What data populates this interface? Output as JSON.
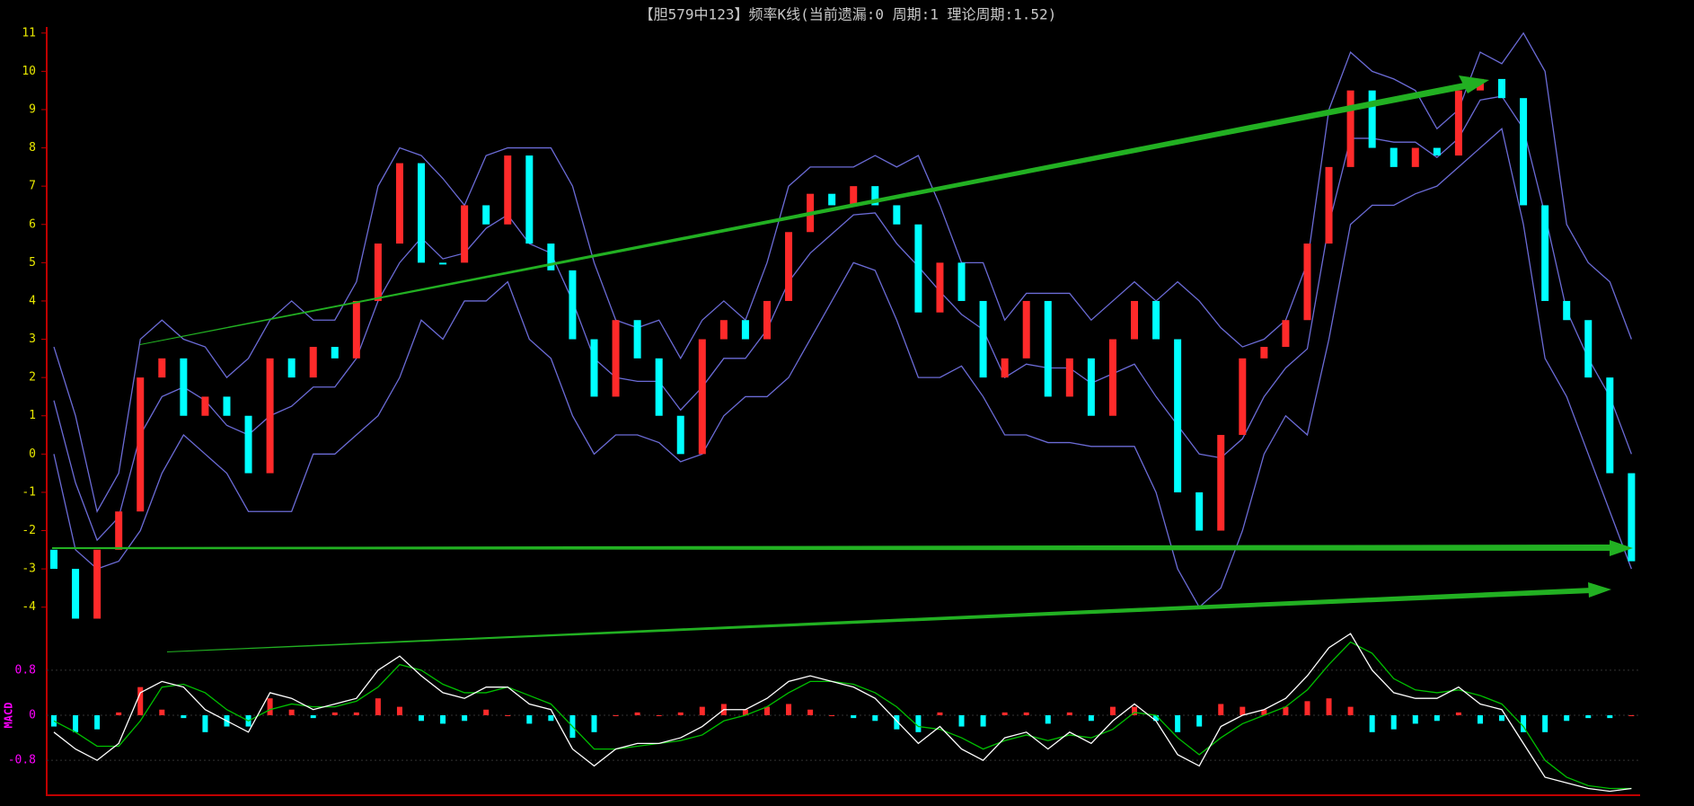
{
  "chart_data": {
    "type": "candlestick",
    "title": "【胆579中123】频率K线(当前遗漏:0 周期:1 理论周期:1.52)",
    "open": [
      -2.5,
      -3,
      -4.3,
      -2.5,
      -1.5,
      2,
      2.5,
      1,
      1.5,
      1,
      -0.5,
      2.5,
      2,
      2.8,
      2.5,
      4,
      5.5,
      7.6,
      5,
      5,
      6.5,
      6,
      7.8,
      5.5,
      4.8,
      3,
      1.5,
      3.5,
      2.5,
      1,
      0,
      3,
      3.5,
      3,
      4,
      5.8,
      6.8,
      6.5,
      7,
      6.5,
      6,
      3.7,
      5,
      4,
      2,
      2.5,
      4,
      1.5,
      2.5,
      1,
      3,
      4,
      3,
      -1,
      -2,
      0.5,
      2.5,
      2.8,
      3.5,
      5.5,
      7.5,
      9.5,
      8,
      7.5,
      8,
      7.8,
      9.5,
      9.8,
      9.3,
      6.5,
      4,
      3.5,
      2,
      -0.5
    ],
    "close": [
      -3,
      -4.3,
      -2.5,
      -1.5,
      2,
      2.5,
      1,
      1.5,
      1,
      -0.5,
      2.5,
      2,
      2.8,
      2.5,
      4,
      5.5,
      7.6,
      5,
      5,
      6.5,
      6,
      7.8,
      5.5,
      4.8,
      3,
      1.5,
      3.5,
      2.5,
      1,
      0,
      3,
      3.5,
      3,
      4,
      5.8,
      6.8,
      6.5,
      7,
      6.5,
      6,
      3.7,
      5,
      4,
      2,
      2.5,
      4,
      1.5,
      2.5,
      1,
      3,
      4,
      3,
      -1,
      -2,
      0.5,
      2.5,
      2.8,
      3.5,
      5.5,
      7.5,
      9.5,
      8,
      7.5,
      8,
      7.8,
      9.5,
      9.8,
      9.3,
      6.5,
      4,
      3.5,
      2,
      -0.5,
      -2.8
    ],
    "upper": [
      2.8,
      1,
      -1.5,
      -0.5,
      3,
      3.5,
      3,
      2.8,
      2,
      2.5,
      3.5,
      4,
      3.5,
      3.5,
      4.5,
      7,
      8,
      7.8,
      7.2,
      6.5,
      7.8,
      8,
      8,
      8,
      7,
      5,
      3.5,
      3.3,
      3.5,
      2.5,
      3.5,
      4,
      3.5,
      5,
      7,
      7.5,
      7.5,
      7.5,
      7.8,
      7.5,
      7.8,
      6.5,
      5,
      5,
      3.5,
      4.2,
      4.2,
      4.2,
      3.5,
      4,
      4.5,
      4,
      4.5,
      4,
      3.3,
      2.8,
      3,
      3.5,
      5,
      9,
      10.5,
      10,
      9.8,
      9.5,
      8.5,
      9,
      10.5,
      10.2,
      11,
      10,
      6,
      5,
      4.5,
      3
    ],
    "middle": [
      1.4,
      -0.75,
      -2.25,
      -1.65,
      0.5,
      1.5,
      1.75,
      1.4,
      0.75,
      0.5,
      1,
      1.25,
      1.75,
      1.75,
      2.5,
      4,
      5,
      5.65,
      5.1,
      5.25,
      5.9,
      6.25,
      5.5,
      5.25,
      4,
      2.5,
      2,
      1.9,
      1.9,
      1.15,
      1.75,
      2.5,
      2.5,
      3.25,
      4.5,
      5.25,
      5.75,
      6.25,
      6.3,
      5.5,
      4.9,
      4.25,
      3.65,
      3.25,
      2,
      2.35,
      2.25,
      2.25,
      1.85,
      2.1,
      2.35,
      1.5,
      0.75,
      0,
      -0.1,
      0.4,
      1.5,
      2.25,
      2.75,
      6,
      8.25,
      8.25,
      8.15,
      8.15,
      7.75,
      8.25,
      9.25,
      9.35,
      8.5,
      6.25,
      3.75,
      2.5,
      1.5,
      0
    ],
    "lower": [
      0,
      -2.5,
      -3,
      -2.8,
      -2,
      -0.5,
      0.5,
      0,
      -0.5,
      -1.5,
      -1.5,
      -1.5,
      0,
      0,
      0.5,
      1,
      2,
      3.5,
      3,
      4,
      4,
      4.5,
      3,
      2.5,
      1,
      0,
      0.5,
      0.5,
      0.3,
      -0.2,
      0,
      1,
      1.5,
      1.5,
      2,
      3,
      4,
      5,
      4.8,
      3.5,
      2,
      2,
      2.3,
      1.5,
      0.5,
      0.5,
      0.3,
      0.3,
      0.2,
      0.2,
      0.2,
      -1,
      -3,
      -4,
      -3.5,
      -2,
      0,
      1,
      0.5,
      3,
      6,
      6.5,
      6.5,
      6.8,
      7,
      7.5,
      8,
      8.5,
      6,
      2.5,
      1.5,
      0,
      -1.5,
      -3
    ],
    "up_color": "#ff2a2a",
    "down_color": "#00ffff",
    "band_color": "#6b6bd6",
    "ylim": [
      -4.5,
      11.3
    ],
    "yticks": [
      11,
      10,
      9,
      8,
      7,
      6,
      5,
      4,
      3,
      2,
      1,
      0,
      -1,
      -2,
      -3,
      -4
    ],
    "macd": {
      "label": "MACD",
      "dif": [
        -0.3,
        -0.6,
        -0.8,
        -0.5,
        0.4,
        0.6,
        0.5,
        0.1,
        -0.1,
        -0.3,
        0.4,
        0.3,
        0.1,
        0.2,
        0.3,
        0.8,
        1.05,
        0.7,
        0.4,
        0.3,
        0.5,
        0.5,
        0.2,
        0.1,
        -0.6,
        -0.9,
        -0.6,
        -0.5,
        -0.5,
        -0.4,
        -0.2,
        0.1,
        0.1,
        0.3,
        0.6,
        0.7,
        0.6,
        0.5,
        0.3,
        -0.1,
        -0.5,
        -0.2,
        -0.6,
        -0.8,
        -0.4,
        -0.3,
        -0.6,
        -0.3,
        -0.5,
        -0.1,
        0.2,
        -0.1,
        -0.7,
        -0.9,
        -0.2,
        0,
        0.1,
        0.3,
        0.7,
        1.2,
        1.45,
        0.8,
        0.4,
        0.3,
        0.3,
        0.5,
        0.2,
        0.1,
        -0.5,
        -1.1,
        -1.2,
        -1.3,
        -1.35,
        -1.3
      ],
      "dea": [
        -0.1,
        -0.3,
        -0.55,
        -0.55,
        -0.1,
        0.5,
        0.55,
        0.4,
        0.1,
        -0.1,
        0.1,
        0.2,
        0.15,
        0.15,
        0.25,
        0.5,
        0.9,
        0.8,
        0.55,
        0.4,
        0.4,
        0.5,
        0.35,
        0.2,
        -0.2,
        -0.6,
        -0.6,
        -0.55,
        -0.5,
        -0.45,
        -0.35,
        -0.1,
        0,
        0.15,
        0.4,
        0.6,
        0.6,
        0.55,
        0.4,
        0.15,
        -0.2,
        -0.25,
        -0.4,
        -0.6,
        -0.45,
        -0.35,
        -0.45,
        -0.35,
        -0.4,
        -0.25,
        0.05,
        0,
        -0.4,
        -0.7,
        -0.4,
        -0.15,
        0,
        0.15,
        0.45,
        0.9,
        1.3,
        1.1,
        0.65,
        0.45,
        0.4,
        0.45,
        0.35,
        0.2,
        -0.2,
        -0.8,
        -1.1,
        -1.25,
        -1.3,
        -1.3
      ],
      "hist": [
        -0.2,
        -0.3,
        -0.25,
        0.05,
        0.5,
        0.1,
        -0.05,
        -0.3,
        -0.2,
        -0.2,
        0.3,
        0.1,
        -0.05,
        0.05,
        0.05,
        0.3,
        0.15,
        -0.1,
        -0.15,
        -0.1,
        0.1,
        0,
        -0.15,
        -0.1,
        -0.4,
        -0.3,
        0,
        0.05,
        0,
        0.05,
        0.15,
        0.2,
        0.1,
        0.15,
        0.2,
        0.1,
        0,
        -0.05,
        -0.1,
        -0.25,
        -0.3,
        0.05,
        -0.2,
        -0.2,
        0.05,
        0.05,
        -0.15,
        0.05,
        -0.1,
        0.15,
        0.15,
        -0.1,
        -0.3,
        -0.2,
        0.2,
        0.15,
        0.1,
        0.15,
        0.25,
        0.3,
        0.15,
        -0.3,
        -0.25,
        -0.15,
        -0.1,
        0.05,
        -0.15,
        -0.1,
        -0.3,
        -0.3,
        -0.1,
        -0.05,
        -0.05,
        0
      ],
      "dif_color": "#ffffff",
      "dea_color": "#00c000",
      "ylim": [
        -1.42,
        1.5
      ],
      "yticks": [
        0.8,
        0,
        -0.8
      ]
    }
  }
}
